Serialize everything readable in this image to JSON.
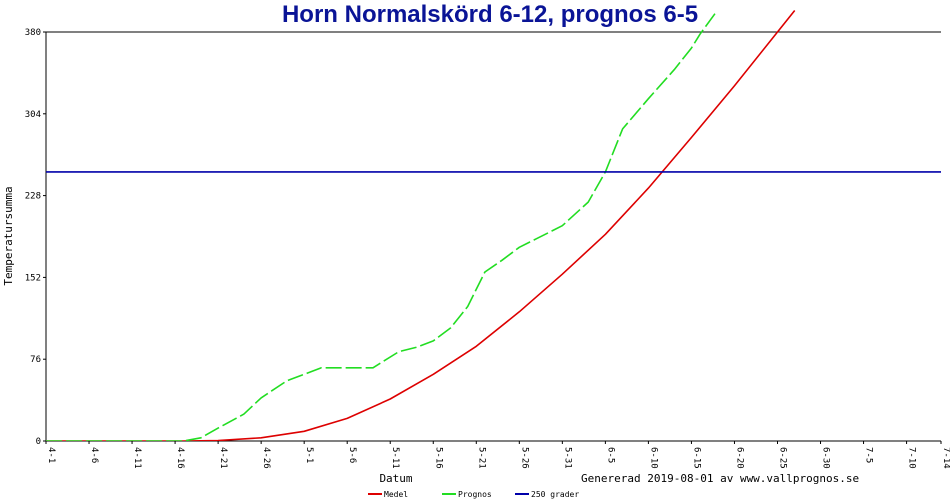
{
  "chart_data": {
    "type": "line",
    "title": "Horn Normalskörd 6-12, prognos 6-5",
    "xlabel": "Datum",
    "ylabel": "Temperatursumma",
    "footer": "Genererad 2019-08-01 av www.vallprognos.se",
    "ylim": [
      0,
      380
    ],
    "yticks": [
      0,
      76,
      152,
      228,
      304,
      380
    ],
    "xlim": [
      "2019-04-01",
      "2019-07-14"
    ],
    "xticks": [
      "4-1",
      "4-6",
      "4-11",
      "4-16",
      "4-21",
      "4-26",
      "5-1",
      "5-6",
      "5-11",
      "5-16",
      "5-21",
      "5-26",
      "5-31",
      "6-5",
      "6-10",
      "6-15",
      "6-20",
      "6-25",
      "6-30",
      "7-5",
      "7-10",
      "7-14"
    ],
    "series": [
      {
        "name": "Medel",
        "color": "#dd0000",
        "style": "solid",
        "points": [
          [
            "2019-04-01",
            0
          ],
          [
            "2019-04-17",
            0
          ],
          [
            "2019-04-21",
            0.5
          ],
          [
            "2019-04-26",
            3
          ],
          [
            "2019-05-01",
            9
          ],
          [
            "2019-05-06",
            21
          ],
          [
            "2019-05-11",
            39
          ],
          [
            "2019-05-16",
            62
          ],
          [
            "2019-05-21",
            88
          ],
          [
            "2019-05-26",
            120
          ],
          [
            "2019-05-31",
            155
          ],
          [
            "2019-06-05",
            192
          ],
          [
            "2019-06-10",
            235
          ],
          [
            "2019-06-15",
            282
          ],
          [
            "2019-06-20",
            330
          ],
          [
            "2019-06-25",
            380
          ],
          [
            "2019-06-27",
            400
          ]
        ]
      },
      {
        "name": "Prognos",
        "color": "#22dd22",
        "style": "dashed",
        "points": [
          [
            "2019-04-01",
            0
          ],
          [
            "2019-04-17",
            0
          ],
          [
            "2019-04-19",
            3
          ],
          [
            "2019-04-21",
            12
          ],
          [
            "2019-04-24",
            25
          ],
          [
            "2019-04-26",
            40
          ],
          [
            "2019-04-29",
            56
          ],
          [
            "2019-05-01",
            62
          ],
          [
            "2019-05-03",
            68
          ],
          [
            "2019-05-06",
            68
          ],
          [
            "2019-05-09",
            68
          ],
          [
            "2019-05-10",
            73
          ],
          [
            "2019-05-12",
            83
          ],
          [
            "2019-05-14",
            87
          ],
          [
            "2019-05-16",
            93
          ],
          [
            "2019-05-18",
            105
          ],
          [
            "2019-05-20",
            125
          ],
          [
            "2019-05-22",
            157
          ],
          [
            "2019-05-24",
            168
          ],
          [
            "2019-05-26",
            180
          ],
          [
            "2019-05-28",
            188
          ],
          [
            "2019-05-31",
            200
          ],
          [
            "2019-06-03",
            222
          ],
          [
            "2019-06-05",
            250
          ],
          [
            "2019-06-07",
            290
          ],
          [
            "2019-06-10",
            318
          ],
          [
            "2019-06-13",
            345
          ],
          [
            "2019-06-15",
            365
          ],
          [
            "2019-06-16",
            378
          ],
          [
            "2019-06-18",
            400
          ]
        ]
      },
      {
        "name": "250 grader",
        "color": "#0000aa",
        "style": "solid",
        "points": [
          [
            "2019-04-01",
            250
          ],
          [
            "2019-07-14",
            250
          ]
        ]
      }
    ],
    "grid": false,
    "legend_position": "bottom"
  }
}
